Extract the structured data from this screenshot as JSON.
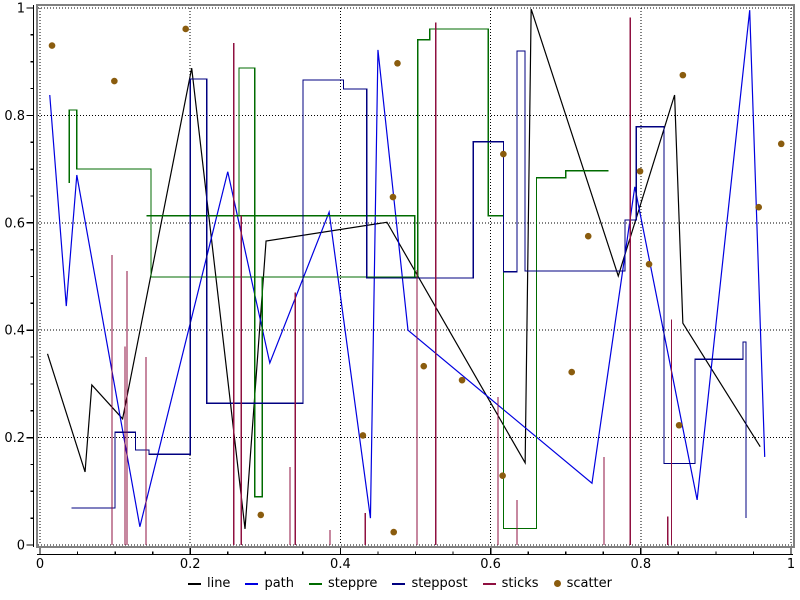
{
  "chart_data": {
    "type": "line",
    "title": "",
    "xlabel": "",
    "ylabel": "",
    "xlim": [
      0,
      1
    ],
    "ylim": [
      0,
      1
    ],
    "xticks": [
      0,
      0.2,
      0.4,
      0.6,
      0.8,
      1
    ],
    "yticks": [
      0,
      0.2,
      0.4,
      0.6,
      0.8,
      1
    ],
    "minor_tick_step": 0.05,
    "grid": "dotted",
    "grid_color": "#000000",
    "frame_color": "#808080",
    "axis_color": "#000000",
    "legend_position": "bottom-center",
    "series": [
      {
        "name": "line",
        "style": "line",
        "color": "#000000",
        "points": [
          [
            0.01,
            0.356
          ],
          [
            0.06,
            0.136
          ],
          [
            0.069,
            0.298
          ],
          [
            0.11,
            0.235
          ],
          [
            0.202,
            0.888
          ],
          [
            0.273,
            0.03
          ],
          [
            0.301,
            0.566
          ],
          [
            0.462,
            0.601
          ],
          [
            0.646,
            0.153
          ],
          [
            0.654,
            0.998
          ],
          [
            0.77,
            0.501
          ],
          [
            0.845,
            0.838
          ],
          [
            0.856,
            0.413
          ],
          [
            0.959,
            0.183
          ]
        ]
      },
      {
        "name": "path",
        "style": "path",
        "color": "#0000e0",
        "points": [
          [
            0.013,
            0.838
          ],
          [
            0.035,
            0.445
          ],
          [
            0.049,
            0.689
          ],
          [
            0.133,
            0.034
          ],
          [
            0.25,
            0.695
          ],
          [
            0.306,
            0.339
          ],
          [
            0.385,
            0.62
          ],
          [
            0.44,
            0.05
          ],
          [
            0.45,
            0.922
          ],
          [
            0.49,
            0.4
          ],
          [
            0.735,
            0.115
          ],
          [
            0.792,
            0.667
          ],
          [
            0.875,
            0.084
          ],
          [
            0.945,
            0.996
          ],
          [
            0.965,
            0.164
          ]
        ]
      },
      {
        "name": "steppre",
        "style": "steps-pre",
        "color": "#006b00",
        "points": [
          [
            0.039,
            0.674
          ],
          [
            0.049,
            0.81
          ],
          [
            0.148,
            0.7
          ],
          [
            0.499,
            0.499
          ],
          [
            0.142,
            0.613
          ],
          [
            0.265,
            0.613
          ],
          [
            0.286,
            0.888
          ],
          [
            0.296,
            0.09
          ],
          [
            0.503,
            0.499
          ],
          [
            0.519,
            0.941
          ],
          [
            0.597,
            0.961
          ],
          [
            0.599,
            0.613
          ],
          [
            0.617,
            0.613
          ],
          [
            0.661,
            0.031
          ],
          [
            0.7,
            0.684
          ],
          [
            0.757,
            0.697
          ]
        ]
      },
      {
        "name": "steppost",
        "style": "steps-post",
        "color": "#000080",
        "points": [
          [
            0.042,
            0.069
          ],
          [
            0.1,
            0.21
          ],
          [
            0.127,
            0.177
          ],
          [
            0.145,
            0.169
          ],
          [
            0.2,
            0.868
          ],
          [
            0.222,
            0.264
          ],
          [
            0.35,
            0.866
          ],
          [
            0.404,
            0.849
          ],
          [
            0.435,
            0.497
          ],
          [
            0.577,
            0.751
          ],
          [
            0.617,
            0.509
          ],
          [
            0.635,
            0.92
          ],
          [
            0.646,
            0.51
          ],
          [
            0.779,
            0.605
          ],
          [
            0.794,
            0.779
          ],
          [
            0.831,
            0.152
          ],
          [
            0.872,
            0.346
          ],
          [
            0.936,
            0.378
          ],
          [
            0.94,
            0.05
          ]
        ]
      },
      {
        "name": "sticks",
        "style": "sticks",
        "color": "#8f1040",
        "points": [
          [
            0.096,
            0.54
          ],
          [
            0.113,
            0.37
          ],
          [
            0.116,
            0.51
          ],
          [
            0.141,
            0.35
          ],
          [
            0.258,
            0.935
          ],
          [
            0.268,
            0.614
          ],
          [
            0.333,
            0.145
          ],
          [
            0.34,
            0.47
          ],
          [
            0.386,
            0.028
          ],
          [
            0.433,
            0.06
          ],
          [
            0.502,
            0.512
          ],
          [
            0.527,
            0.973
          ],
          [
            0.61,
            0.276
          ],
          [
            0.635,
            0.084
          ],
          [
            0.751,
            0.164
          ],
          [
            0.786,
            0.982
          ],
          [
            0.836,
            0.053
          ],
          [
            0.841,
            0.42
          ]
        ]
      },
      {
        "name": "scatter",
        "style": "scatter",
        "color": "#8a5c0e",
        "marker_radius": 3.3,
        "points": [
          [
            0.016,
            0.93
          ],
          [
            0.099,
            0.864
          ],
          [
            0.194,
            0.961
          ],
          [
            0.294,
            0.056
          ],
          [
            0.43,
            0.204
          ],
          [
            0.47,
            0.648
          ],
          [
            0.471,
            0.024
          ],
          [
            0.476,
            0.897
          ],
          [
            0.511,
            0.333
          ],
          [
            0.562,
            0.307
          ],
          [
            0.616,
            0.129
          ],
          [
            0.617,
            0.728
          ],
          [
            0.708,
            0.322
          ],
          [
            0.73,
            0.575
          ],
          [
            0.799,
            0.696
          ],
          [
            0.811,
            0.523
          ],
          [
            0.851,
            0.223
          ],
          [
            0.856,
            0.875
          ],
          [
            0.957,
            0.629
          ],
          [
            0.987,
            0.747
          ]
        ]
      }
    ]
  }
}
